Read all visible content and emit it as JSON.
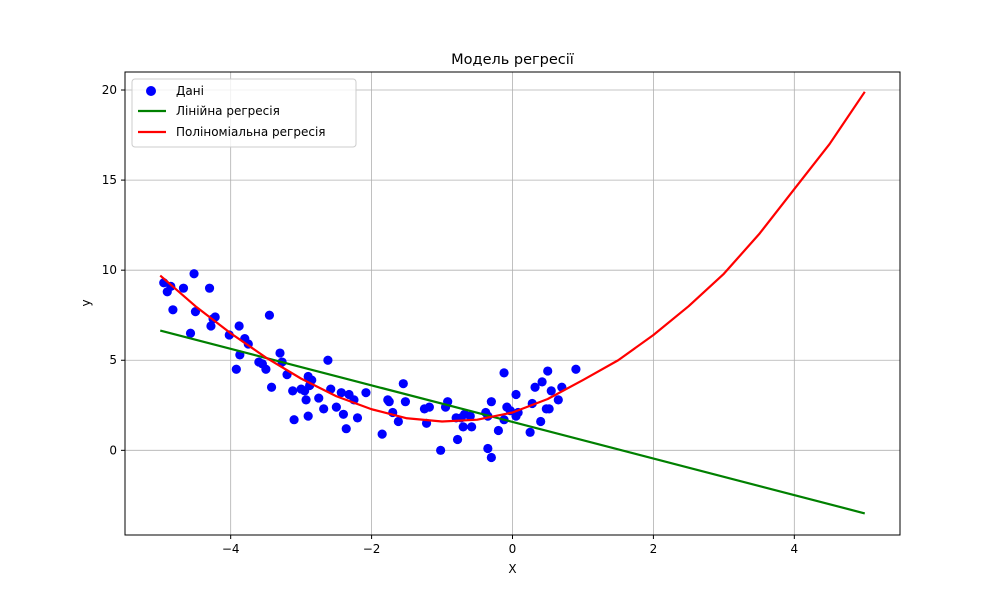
{
  "chart_data": {
    "type": "scatter",
    "title": "Модель регресії",
    "xlabel": "X",
    "ylabel": "y",
    "xlim": [
      -5.5,
      5.5
    ],
    "ylim": [
      -4.7,
      21
    ],
    "xticks": [
      -4,
      -2,
      0,
      2,
      4
    ],
    "yticks": [
      0,
      5,
      10,
      15,
      20
    ],
    "xtick_labels": [
      "−4",
      "−2",
      "0",
      "2",
      "4"
    ],
    "ytick_labels": [
      "0",
      "5",
      "10",
      "15",
      "20"
    ],
    "grid": true,
    "legend_position": "top-left",
    "series": [
      {
        "name": "Дані",
        "kind": "scatter",
        "color": "#0000ff",
        "points": [
          [
            -4.95,
            9.3
          ],
          [
            -4.9,
            8.8
          ],
          [
            -4.85,
            9.1
          ],
          [
            -4.82,
            7.8
          ],
          [
            -4.67,
            9.0
          ],
          [
            -4.57,
            6.5
          ],
          [
            -4.52,
            9.8
          ],
          [
            -4.5,
            7.7
          ],
          [
            -4.3,
            9.0
          ],
          [
            -4.28,
            6.9
          ],
          [
            -4.25,
            7.3
          ],
          [
            -4.22,
            7.4
          ],
          [
            -4.02,
            6.4
          ],
          [
            -3.92,
            4.5
          ],
          [
            -3.88,
            6.9
          ],
          [
            -3.87,
            5.3
          ],
          [
            -3.8,
            6.2
          ],
          [
            -3.75,
            5.9
          ],
          [
            -3.6,
            4.9
          ],
          [
            -3.55,
            4.8
          ],
          [
            -3.5,
            4.5
          ],
          [
            -3.45,
            7.5
          ],
          [
            -3.42,
            3.5
          ],
          [
            -3.3,
            5.4
          ],
          [
            -3.27,
            4.9
          ],
          [
            -3.2,
            4.2
          ],
          [
            -3.12,
            3.3
          ],
          [
            -3.1,
            1.7
          ],
          [
            -3.0,
            3.4
          ],
          [
            -2.95,
            3.3
          ],
          [
            -2.93,
            2.8
          ],
          [
            -2.9,
            4.1
          ],
          [
            -2.9,
            1.9
          ],
          [
            -2.88,
            3.6
          ],
          [
            -2.85,
            3.9
          ],
          [
            -2.75,
            2.9
          ],
          [
            -2.68,
            2.3
          ],
          [
            -2.62,
            5.0
          ],
          [
            -2.58,
            3.4
          ],
          [
            -2.5,
            2.4
          ],
          [
            -2.43,
            3.2
          ],
          [
            -2.4,
            2.0
          ],
          [
            -2.36,
            1.2
          ],
          [
            -2.32,
            3.1
          ],
          [
            -2.25,
            2.8
          ],
          [
            -2.2,
            1.8
          ],
          [
            -2.08,
            3.2
          ],
          [
            -1.85,
            0.9
          ],
          [
            -1.77,
            2.8
          ],
          [
            -1.75,
            2.7
          ],
          [
            -1.7,
            2.1
          ],
          [
            -1.62,
            1.6
          ],
          [
            -1.55,
            3.7
          ],
          [
            -1.52,
            2.7
          ],
          [
            -1.25,
            2.3
          ],
          [
            -1.22,
            1.5
          ],
          [
            -1.18,
            2.4
          ],
          [
            -1.02,
            0.0
          ],
          [
            -0.95,
            2.4
          ],
          [
            -0.92,
            2.7
          ],
          [
            -0.8,
            1.8
          ],
          [
            -0.78,
            0.6
          ],
          [
            -0.73,
            1.8
          ],
          [
            -0.7,
            1.3
          ],
          [
            -0.68,
            2.0
          ],
          [
            -0.6,
            1.9
          ],
          [
            -0.58,
            1.3
          ],
          [
            -0.38,
            2.1
          ],
          [
            -0.35,
            1.9
          ],
          [
            -0.35,
            0.1
          ],
          [
            -0.3,
            2.7
          ],
          [
            -0.3,
            -0.4
          ],
          [
            -0.2,
            1.1
          ],
          [
            -0.12,
            1.7
          ],
          [
            -0.12,
            4.3
          ],
          [
            -0.08,
            2.4
          ],
          [
            -0.03,
            2.2
          ],
          [
            0.05,
            3.1
          ],
          [
            0.05,
            1.9
          ],
          [
            0.08,
            2.1
          ],
          [
            0.25,
            1.0
          ],
          [
            0.28,
            2.6
          ],
          [
            0.32,
            3.5
          ],
          [
            0.4,
            1.6
          ],
          [
            0.42,
            3.8
          ],
          [
            0.48,
            2.3
          ],
          [
            0.5,
            4.4
          ],
          [
            0.52,
            2.3
          ],
          [
            0.55,
            3.3
          ],
          [
            0.65,
            2.8
          ],
          [
            0.7,
            3.5
          ],
          [
            0.9,
            4.5
          ]
        ]
      },
      {
        "name": "Лінійна регресія",
        "kind": "line",
        "color": "#008000",
        "x": [
          -5,
          5
        ],
        "y": [
          6.65,
          -3.5
        ]
      },
      {
        "name": "Поліноміальна регресія",
        "kind": "line",
        "color": "#ff0000",
        "x": [
          -5,
          -4.5,
          -4,
          -3.5,
          -3,
          -2.5,
          -2,
          -1.5,
          -1,
          -0.5,
          0,
          0.5,
          1,
          1.5,
          2,
          2.5,
          3,
          3.5,
          4,
          4.5,
          5
        ],
        "y": [
          9.7,
          8.0,
          6.5,
          5.15,
          3.98,
          3.0,
          2.28,
          1.78,
          1.6,
          1.7,
          2.1,
          2.85,
          3.9,
          5.0,
          6.4,
          8.0,
          9.8,
          12.0,
          14.5,
          17.0,
          19.9
        ]
      }
    ]
  }
}
